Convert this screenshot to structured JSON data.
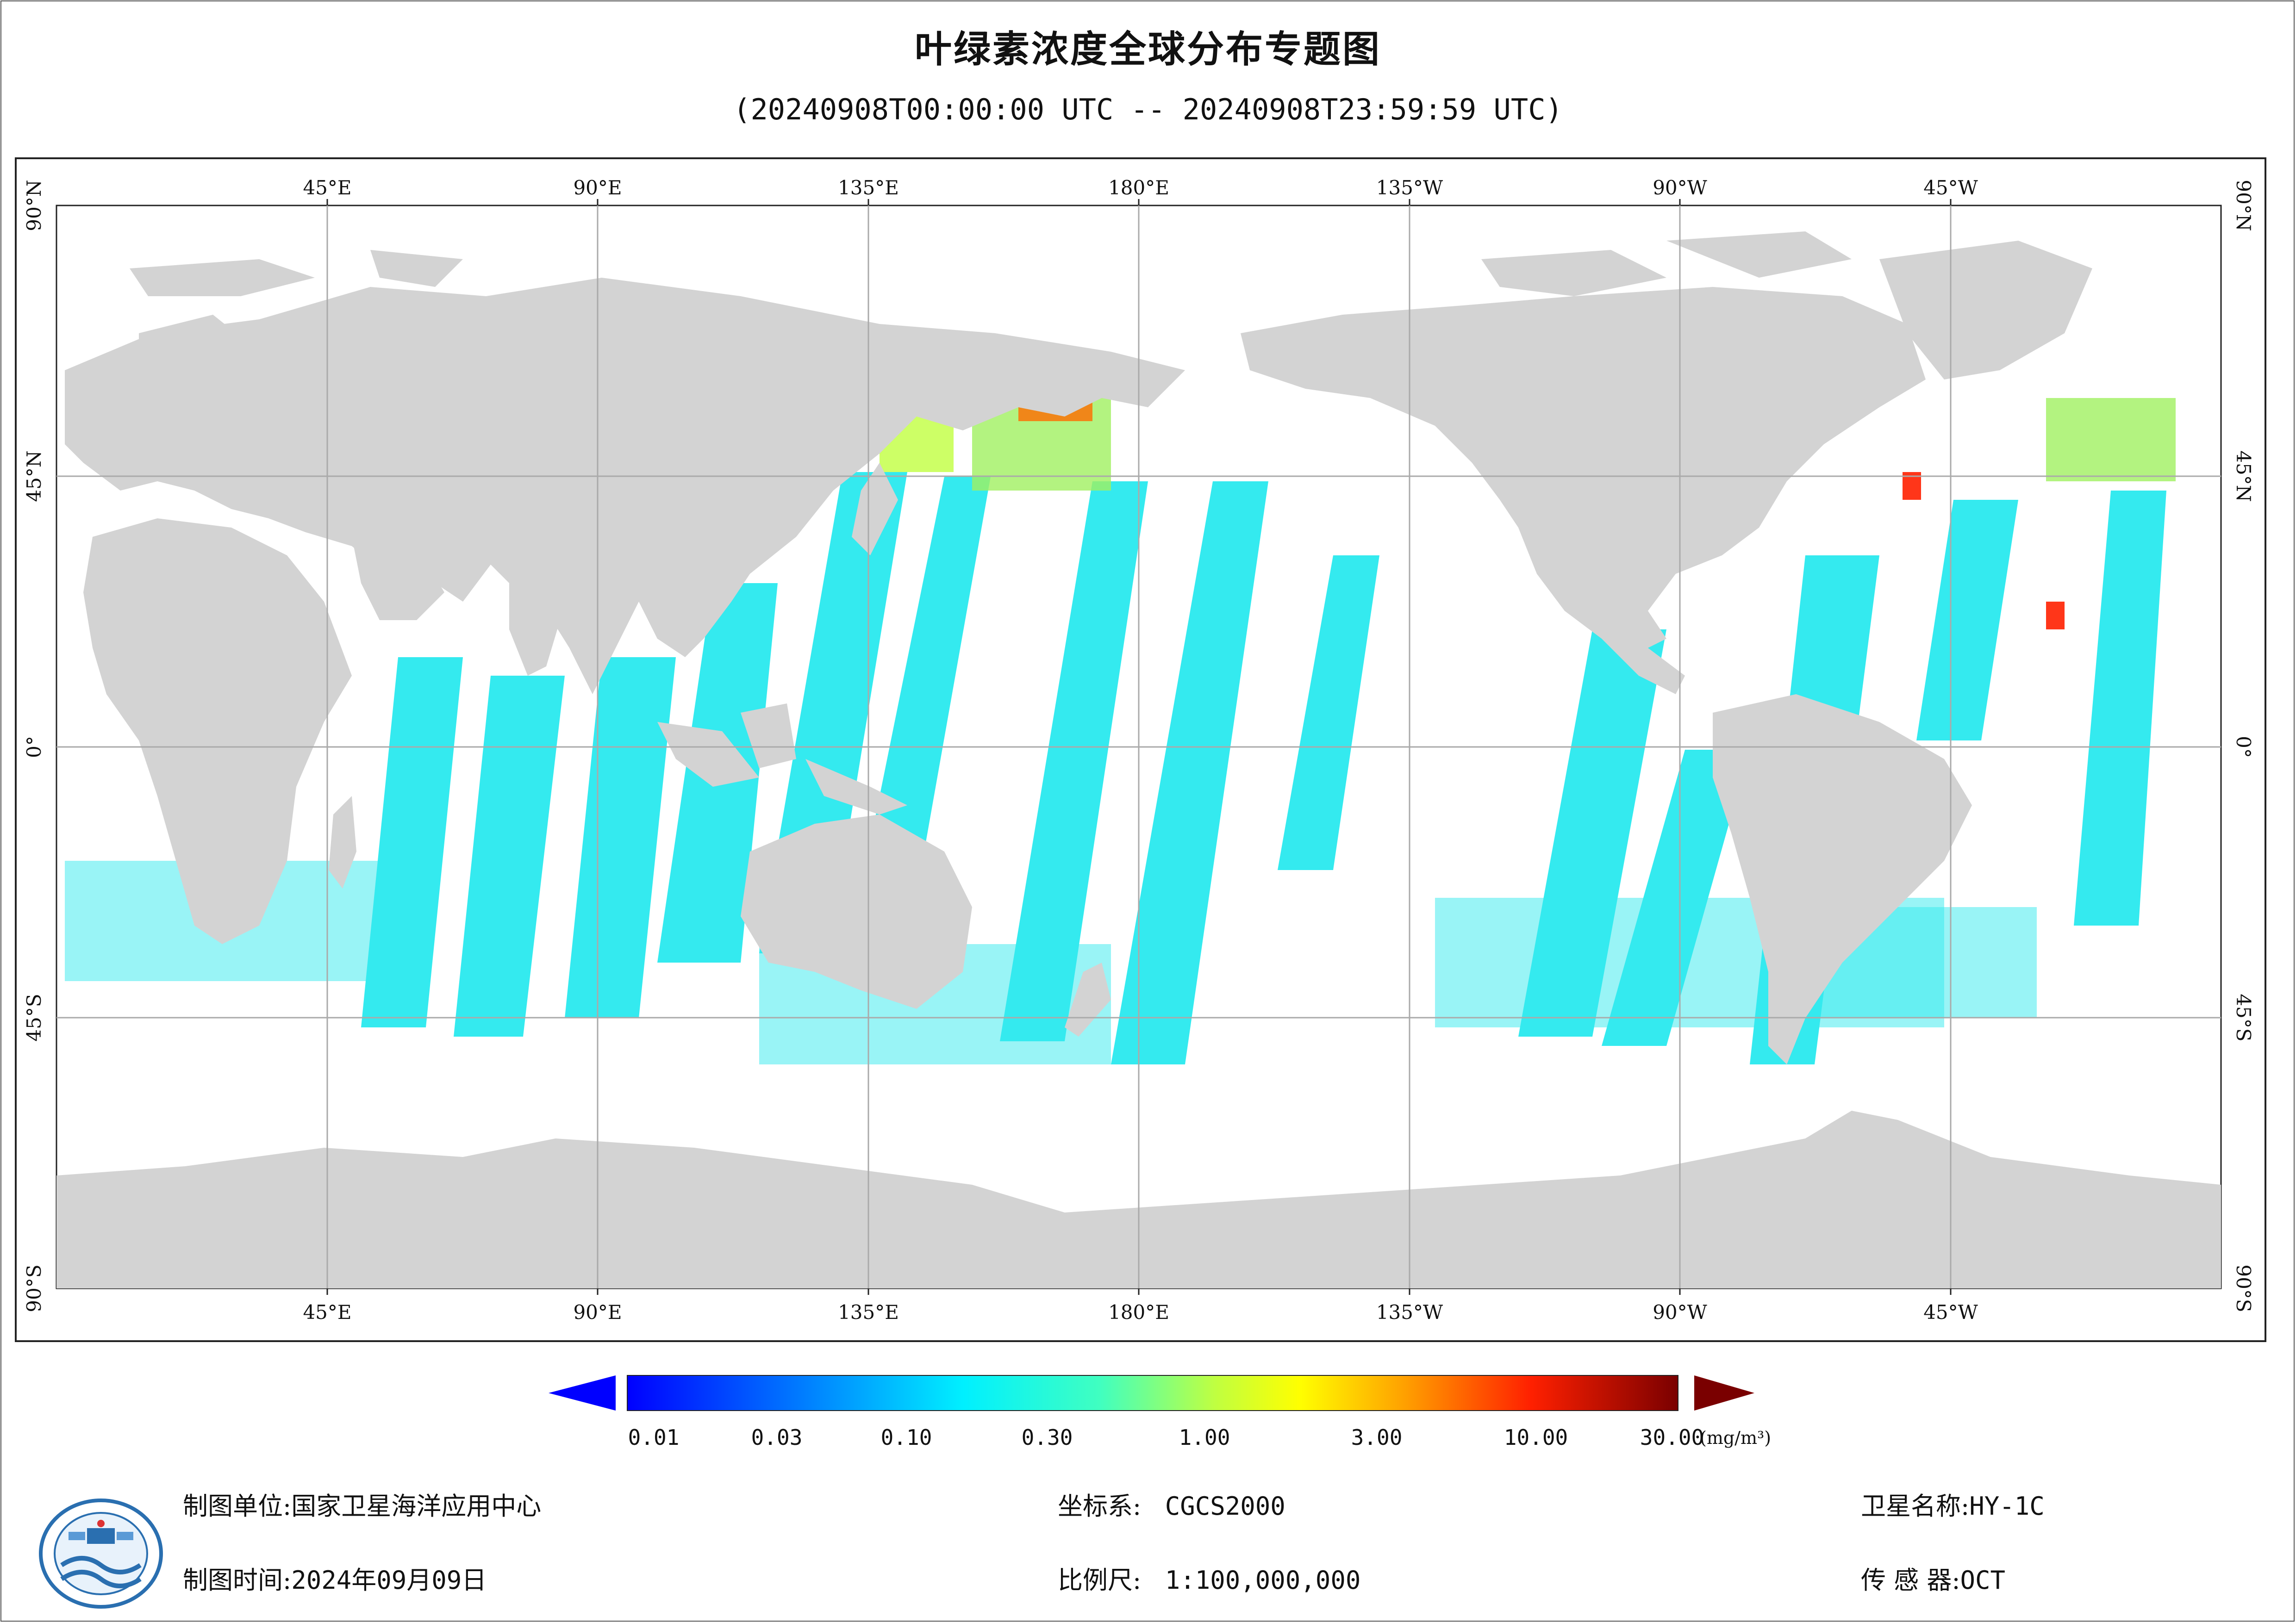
{
  "title": "叶绿素浓度全球分布专题图",
  "subtitle": "(20240908T00:00:00 UTC -- 20240908T23:59:59 UTC)",
  "map": {
    "lon_labels": [
      "45°E",
      "90°E",
      "135°E",
      "180°E",
      "135°W",
      "90°W",
      "45°W"
    ],
    "lat_labels": [
      "90°N",
      "45°N",
      "0°",
      "45°S",
      "90°S"
    ],
    "land_color": "#d3d3d3",
    "grid_color": "#aaaaaa"
  },
  "colorbar": {
    "ticks": [
      "0.01",
      "0.03",
      "0.10",
      "0.30",
      "1.00",
      "3.00",
      "10.00",
      "30.00"
    ],
    "unit": "(mg/m³)",
    "low_color": "#0000ff",
    "high_color": "#7a0000"
  },
  "info": {
    "unit_label": "制图单位:",
    "unit_value": "国家卫星海洋应用中心",
    "time_label": "制图时间:",
    "time_value": "2024年09月09日",
    "crs_label": "坐标系:",
    "crs_value": "CGCS2000",
    "scale_label": "比例尺:",
    "scale_value": "1:100,000,000",
    "sat_label": "卫星名称:",
    "sat_value": "HY-1C",
    "sensor_label": "传 感 器:",
    "sensor_value": "OCT"
  }
}
